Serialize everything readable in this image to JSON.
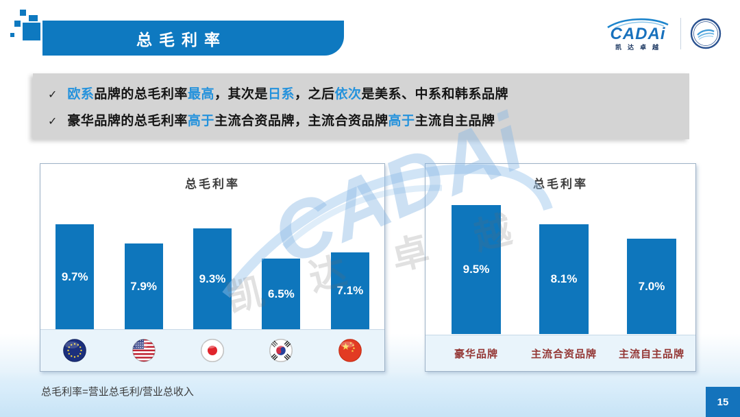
{
  "slide": {
    "title": "总毛利率",
    "footnote": "总毛利率=营业总毛利/营业总收入",
    "page_number": "15"
  },
  "logo": {
    "brand": "CADAi",
    "brand_sub": "凯达卓越"
  },
  "watermark": {
    "brand": "CADAi",
    "chars": "凯达卓越"
  },
  "callout": {
    "bullet_icon": "✓",
    "bullets": [
      {
        "segments": [
          {
            "text": "欧系",
            "hl": true
          },
          {
            "text": "品牌的总毛利率",
            "hl": false
          },
          {
            "text": "最高",
            "hl": true
          },
          {
            "text": "，其次是",
            "hl": false
          },
          {
            "text": "日系",
            "hl": true
          },
          {
            "text": "，之后",
            "hl": false
          },
          {
            "text": "依次",
            "hl": true
          },
          {
            "text": "是美系、中系和韩系品牌",
            "hl": false
          }
        ]
      },
      {
        "segments": [
          {
            "text": "豪华品牌的总毛利率",
            "hl": false
          },
          {
            "text": "高于",
            "hl": true
          },
          {
            "text": "主流合资品牌，主流合资品牌",
            "hl": false
          },
          {
            "text": "高于",
            "hl": true
          },
          {
            "text": "主流自主品牌",
            "hl": false
          }
        ]
      }
    ]
  },
  "chart_data": [
    {
      "type": "bar",
      "title": "总毛利率",
      "unit": "%",
      "ylim": [
        0,
        12
      ],
      "categories": [
        "欧系",
        "美系",
        "日系",
        "韩系",
        "中系"
      ],
      "flag_icons": [
        "eu-flag",
        "us-flag",
        "japan-flag",
        "korea-flag",
        "china-flag"
      ],
      "values": [
        9.7,
        7.9,
        9.3,
        6.5,
        7.1
      ],
      "bar_color": "#0e76bc",
      "label_color": "#ffffff",
      "legend_position": "none",
      "grid": false
    },
    {
      "type": "bar",
      "title": "总毛利率",
      "unit": "%",
      "ylim": [
        0,
        12
      ],
      "categories": [
        "豪华品牌",
        "主流合资品牌",
        "主流自主品牌"
      ],
      "values": [
        9.5,
        8.1,
        7.0
      ],
      "bar_color": "#0e76bc",
      "label_color": "#ffffff",
      "category_color": "#943634",
      "legend_position": "none",
      "grid": false
    }
  ],
  "colors": {
    "accent_blue": "#0e79c0",
    "highlight_text": "#2492dc",
    "callout_bg": "#d4d4d4",
    "category_label": "#943634",
    "strip_bg": "#e9f4fb"
  }
}
